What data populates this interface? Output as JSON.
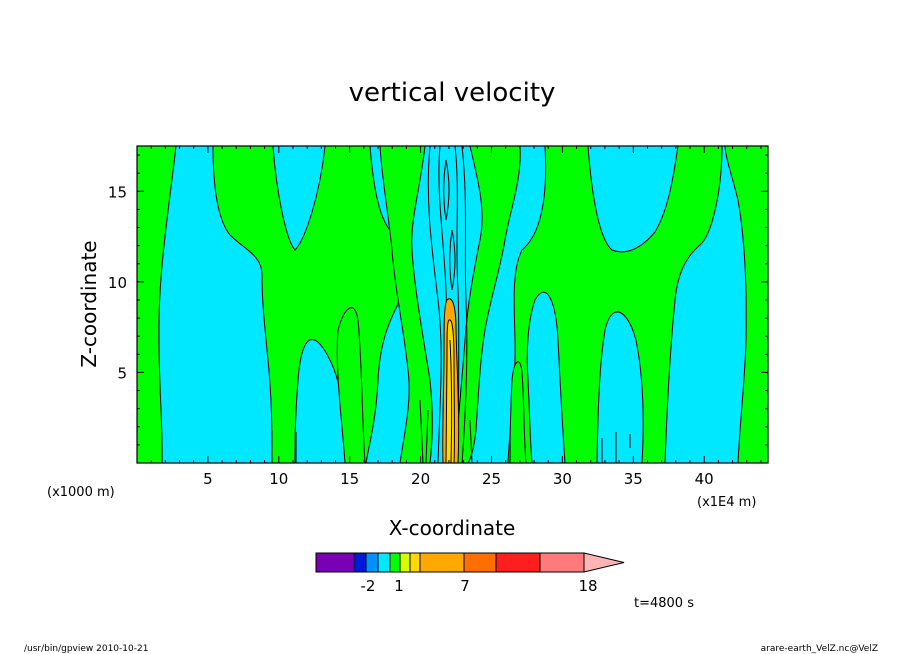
{
  "chart_data": {
    "type": "heatmap",
    "title": "vertical velocity",
    "xlabel": "X-coordinate",
    "ylabel": "Z-coordinate",
    "x_unit": "(x1E4 m)",
    "y_unit": "(x1000 m)",
    "x_ticks": [
      5,
      10,
      15,
      20,
      25,
      30,
      35,
      40
    ],
    "y_ticks": [
      5,
      10,
      15
    ],
    "xlim": [
      0,
      44.5
    ],
    "ylim": [
      0,
      17.5
    ],
    "time_label": "t=4800 s",
    "colorbar": {
      "tick_labels": [
        "-2",
        "1",
        "7",
        "18"
      ],
      "colors": [
        "#7a00b4",
        "#0018d8",
        "#0090ff",
        "#00e8ff",
        "#00ff00",
        "#d8ff00",
        "#ffd800",
        "#ffa800",
        "#ff6e00",
        "#ff1e1e",
        "#ff7a7a",
        "#ffb4b4"
      ],
      "legend_position": "bottom-center"
    },
    "levels_shown": {
      "background_negative_color": "#00e8ff",
      "positive_weak_color": "#00ff00",
      "strong_updraft_color": "#ffa800"
    }
  },
  "footer": {
    "left": "/usr/bin/gpview  2010-10-21",
    "right": "arare-earth_VelZ.nc@VelZ"
  }
}
